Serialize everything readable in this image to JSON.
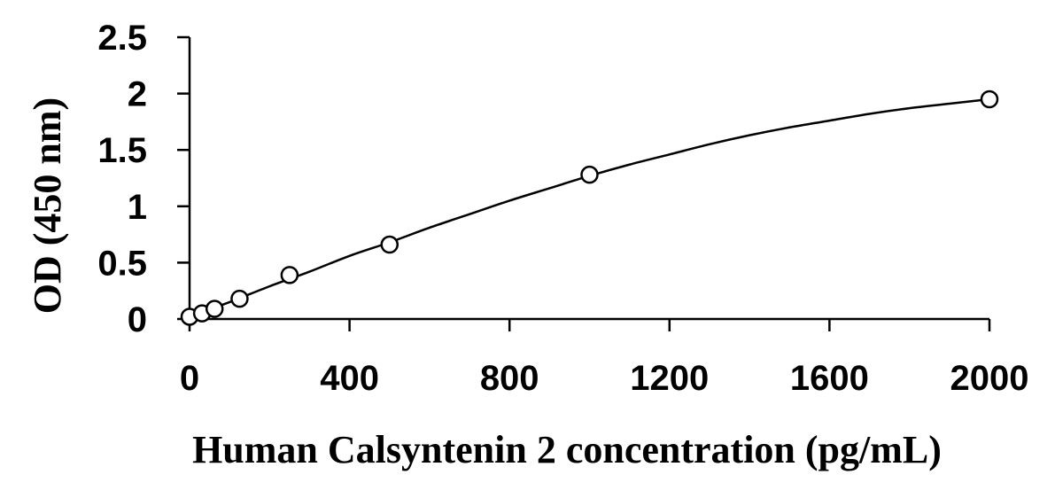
{
  "chart_data": {
    "type": "scatter",
    "title": "",
    "xlabel": "Human Calsyntenin 2 concentration (pg/mL)",
    "ylabel": "OD (450 nm)",
    "xlim": [
      0,
      2000
    ],
    "ylim": [
      0,
      2.5
    ],
    "xticks": [
      0,
      400,
      800,
      1200,
      1600,
      2000
    ],
    "yticks": [
      0,
      0.5,
      1,
      1.5,
      2,
      2.5
    ],
    "xtick_labels": [
      "0",
      "400",
      "800",
      "1200",
      "1600",
      "2000"
    ],
    "ytick_labels": [
      "0",
      "0.5",
      "1",
      "1.5",
      "2",
      "2.5"
    ],
    "grid": false,
    "legend": "none",
    "marker": "open-circle",
    "series": [
      {
        "x": [
          0,
          31.25,
          62.5,
          125,
          250,
          500,
          1000,
          2000
        ],
        "y": [
          0.02,
          0.05,
          0.09,
          0.18,
          0.39,
          0.66,
          1.28,
          1.95
        ]
      }
    ],
    "fit_curve": {
      "type": "smooth",
      "x": [
        0,
        100,
        200,
        300,
        400,
        500,
        600,
        700,
        800,
        900,
        1000,
        1100,
        1200,
        1300,
        1400,
        1500,
        1600,
        1700,
        1800,
        1900,
        2000
      ],
      "y": [
        0.02,
        0.15,
        0.29,
        0.42,
        0.56,
        0.68,
        0.81,
        0.93,
        1.05,
        1.16,
        1.27,
        1.37,
        1.46,
        1.55,
        1.63,
        1.7,
        1.76,
        1.82,
        1.87,
        1.91,
        1.95
      ]
    }
  }
}
